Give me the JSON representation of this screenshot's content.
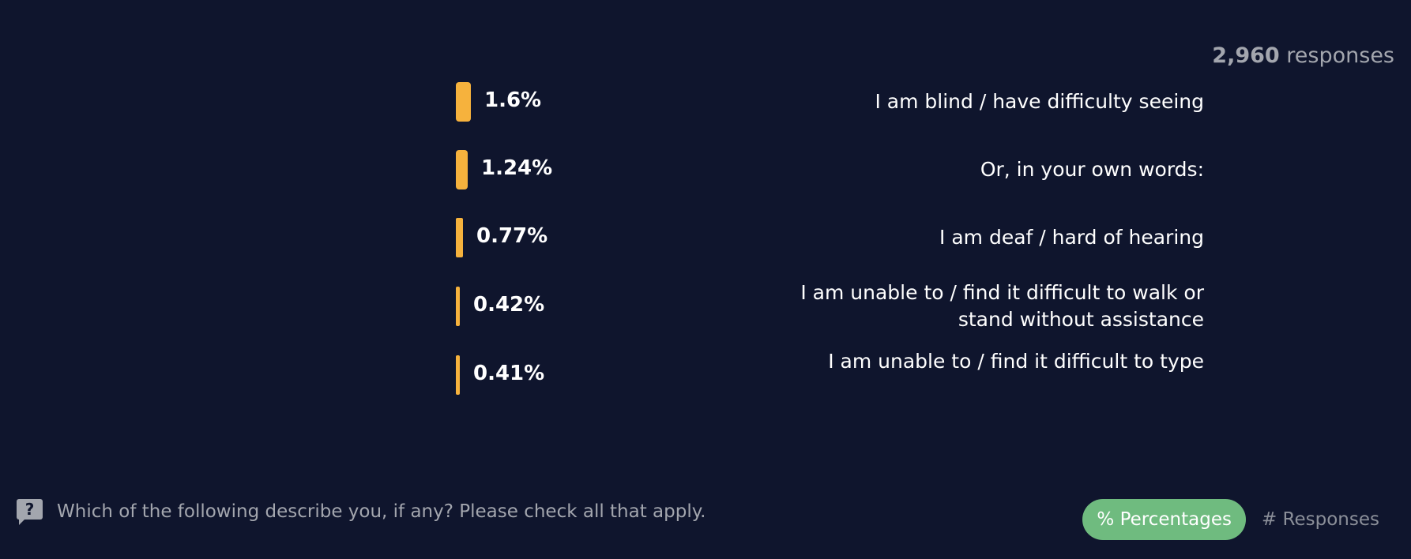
{
  "header": {
    "responses_number": "2,960",
    "responses_word": "responses"
  },
  "chart_data": {
    "type": "bar",
    "orientation": "horizontal",
    "categories": [
      "I am blind / have difficulty seeing",
      "Or, in your own words:",
      "I am deaf / hard of hearing",
      "I am unable to / find it difficult to walk or stand without assistance",
      "I am unable to / find it difficult to type"
    ],
    "values": [
      1.6,
      1.24,
      0.77,
      0.42,
      0.41
    ],
    "value_labels": [
      "1.6%",
      "1.24%",
      "0.77%",
      "0.42%",
      "0.41%"
    ],
    "bar_color": "#f6b23d",
    "grid": false
  },
  "footer": {
    "question_icon": "question-box-icon",
    "question": "Which of the following describe you, if any? Please check all that apply."
  },
  "toggle": {
    "percentages_label": "% Percentages",
    "responses_label": "# Responses",
    "active": "percentages",
    "active_color": "#6fbb7f"
  }
}
